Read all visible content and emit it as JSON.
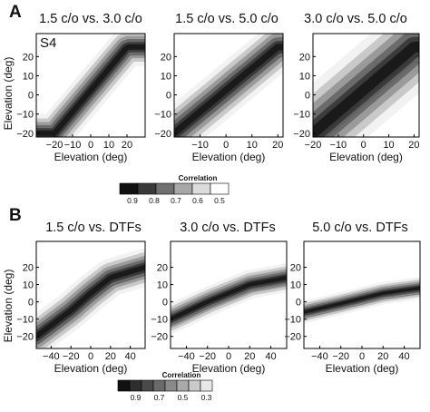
{
  "figure": {
    "panel_A_letter": "A",
    "panel_B_letter": "B",
    "subject_label": "S4",
    "colorbar_A": {
      "title": "Correlation",
      "ticks": [
        "0.9",
        "0.8",
        "0.7",
        "0.6",
        "0.5"
      ]
    },
    "colorbar_B": {
      "title": "Correlation",
      "ticks": [
        "0.9",
        "0.7",
        "0.5",
        "0.3"
      ]
    }
  },
  "chart_data": [
    {
      "type": "heatmap",
      "title": "1.5 c/o vs. 3.0 c/o",
      "xlabel": "Elevation (deg)",
      "ylabel": "Elevation (deg)",
      "xlim": [
        -30,
        30
      ],
      "ylim": [
        -22,
        32
      ],
      "xticks": [
        -20,
        -10,
        0,
        10,
        20
      ],
      "xtick_labels": [
        "−20",
        "−10",
        "0",
        "10",
        "20"
      ],
      "yticks": [
        -20,
        -10,
        0,
        10,
        20
      ],
      "ytick_labels": [
        "−20",
        "−10",
        "0",
        "10",
        "20"
      ],
      "ridge": {
        "x": [
          -20,
          20
        ],
        "y": [
          -20,
          25
        ]
      }
    },
    {
      "type": "heatmap",
      "title": "1.5 c/o vs. 5.0 c/o",
      "xlabel": "Elevation (deg)",
      "ylabel": "",
      "xlim": [
        -20,
        22
      ],
      "ylim": [
        -22,
        32
      ],
      "xticks": [
        -10,
        0,
        10,
        20
      ],
      "xtick_labels": [
        "−10",
        "0",
        "10",
        "20"
      ],
      "yticks": [
        -20,
        -10,
        0,
        10,
        20
      ],
      "ytick_labels": [
        "−20",
        "−10",
        "0",
        "10",
        "20"
      ],
      "ridge": {
        "x": [
          -20,
          20
        ],
        "y": [
          -20,
          25
        ]
      }
    },
    {
      "type": "heatmap",
      "title": "3.0 c/o vs. 5.0 c/o",
      "xlabel": "Elevation (deg)",
      "ylabel": "",
      "xlim": [
        -20,
        22
      ],
      "ylim": [
        -22,
        32
      ],
      "xticks": [
        -20,
        -10,
        0,
        10,
        20
      ],
      "xtick_labels": [
        "−20",
        "−10",
        "0",
        "10",
        "20"
      ],
      "yticks": [
        -20,
        -10,
        0,
        10,
        20
      ],
      "ytick_labels": [
        "−20",
        "−10",
        "0",
        "10",
        "20"
      ],
      "ridge": {
        "x": [
          -20,
          20
        ],
        "y": [
          -20,
          25
        ]
      }
    },
    {
      "type": "heatmap",
      "title": "1.5 c/o vs. DTFs",
      "xlabel": "Elevation (deg)",
      "ylabel": "Elevation (deg)",
      "xlim": [
        -55,
        55
      ],
      "ylim": [
        -27,
        35
      ],
      "xticks": [
        -40,
        -20,
        0,
        20,
        40
      ],
      "xtick_labels": [
        "−40",
        "−20",
        "0",
        "20",
        "40"
      ],
      "yticks": [
        -20,
        -10,
        0,
        10,
        20
      ],
      "ytick_labels": [
        "−20",
        "−10",
        "0",
        "10",
        "20"
      ],
      "ridge": {
        "x": [
          -55,
          -20,
          0,
          20,
          55
        ],
        "y": [
          -20,
          -5,
          5,
          14,
          20
        ]
      }
    },
    {
      "type": "heatmap",
      "title": "3.0 c/o vs. DTFs",
      "xlabel": "Elevation (deg)",
      "ylabel": "",
      "xlim": [
        -55,
        55
      ],
      "ylim": [
        -27,
        35
      ],
      "xticks": [
        -40,
        -20,
        0,
        20,
        40
      ],
      "xtick_labels": [
        "−40",
        "−20",
        "0",
        "20",
        "40"
      ],
      "yticks": [
        -20,
        -10,
        0,
        10,
        20
      ],
      "ytick_labels": [
        "−20",
        "−10",
        "0",
        "10",
        "20"
      ],
      "ridge": {
        "x": [
          -55,
          -20,
          0,
          20,
          55
        ],
        "y": [
          -10,
          0,
          5,
          10,
          14
        ]
      }
    },
    {
      "type": "heatmap",
      "title": "5.0 c/o vs. DTFs",
      "xlabel": "Elevation (deg)",
      "ylabel": "",
      "xlim": [
        -55,
        55
      ],
      "ylim": [
        -27,
        35
      ],
      "xticks": [
        -40,
        -20,
        0,
        20,
        40
      ],
      "xtick_labels": [
        "−40",
        "−20",
        "0",
        "20",
        "40"
      ],
      "yticks": [
        -20,
        -10,
        0,
        10,
        20
      ],
      "ytick_labels": [
        "−20",
        "−10",
        "0",
        "10",
        "20"
      ],
      "ridge": {
        "x": [
          -55,
          -20,
          0,
          20,
          55
        ],
        "y": [
          -6,
          -1,
          2,
          5,
          8
        ]
      }
    }
  ]
}
